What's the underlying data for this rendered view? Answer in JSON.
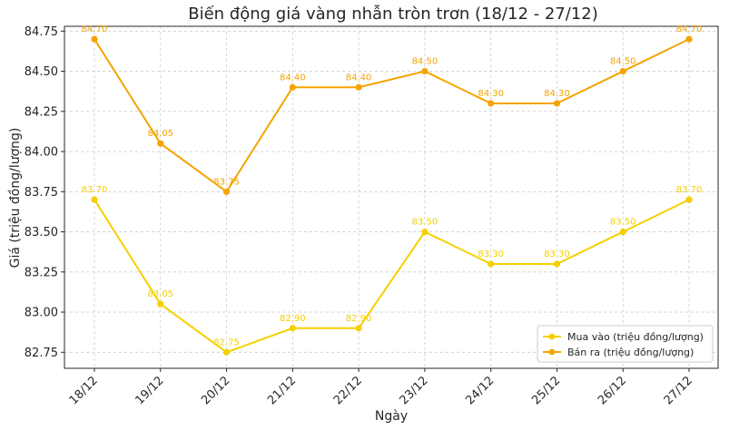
{
  "chart_data": {
    "type": "line",
    "title": "Biến động giá vàng nhẫn tròn trơn (18/12 - 27/12)",
    "xlabel": "Ngày",
    "ylabel": "Giá (triệu đồng/lượng)",
    "categories": [
      "18/12",
      "19/12",
      "20/12",
      "21/12",
      "22/12",
      "23/12",
      "24/12",
      "25/12",
      "26/12",
      "27/12"
    ],
    "y_ticks": [
      "82.75",
      "83.00",
      "83.25",
      "83.50",
      "83.75",
      "84.00",
      "84.25",
      "84.50",
      "84.75"
    ],
    "ylim": [
      82.65,
      84.78
    ],
    "grid": true,
    "legend_position": "bottom-right",
    "series": [
      {
        "name": "Mua vào (triệu đồng/lượng)",
        "color": "#f5d000",
        "values": [
          83.7,
          83.05,
          82.75,
          82.9,
          82.9,
          83.5,
          83.3,
          83.3,
          83.5,
          83.7
        ],
        "labels": [
          "83.70",
          "83.05",
          "82.75",
          "82.90",
          "82.90",
          "83.50",
          "83.30",
          "83.30",
          "83.50",
          "83.70"
        ]
      },
      {
        "name": "Bán ra (triệu đồng/lượng)",
        "color": "#f5a300",
        "values": [
          84.7,
          84.05,
          83.75,
          84.4,
          84.4,
          84.5,
          84.3,
          84.3,
          84.5,
          84.7
        ],
        "labels": [
          "84.70",
          "84.05",
          "83.75",
          "84.40",
          "84.40",
          "84.50",
          "84.30",
          "84.30",
          "84.50",
          "84.70"
        ]
      }
    ]
  }
}
